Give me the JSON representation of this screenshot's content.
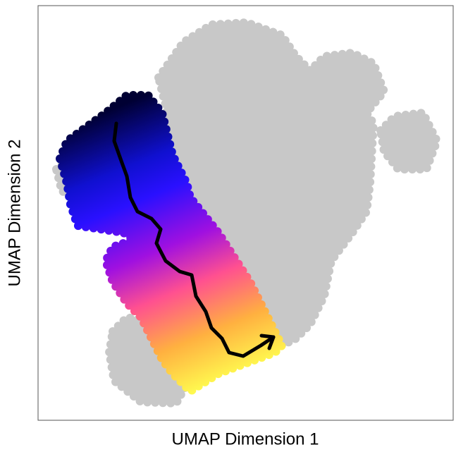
{
  "chart_data": {
    "type": "scatter",
    "xlabel": "UMAP Dimension 1",
    "ylabel": "UMAP Dimension 2"
  }
}
